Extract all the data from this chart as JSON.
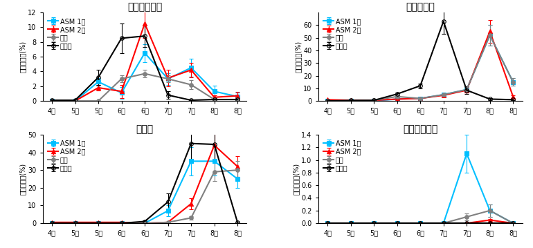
{
  "x_labels": [
    "4하",
    "5중",
    "5하",
    "6중",
    "6하",
    "7중",
    "7하",
    "8중",
    "8하"
  ],
  "charts": {
    "top_left": {
      "title": "점무늬낙엽병",
      "ylim": [
        0,
        12
      ],
      "yticks": [
        0,
        2,
        4,
        6,
        8,
        10,
        12
      ],
      "series": {
        "ASM 1회": {
          "color": "#00BFFF",
          "marker": "s",
          "values": [
            0.0,
            0.0,
            2.6,
            1.1,
            6.5,
            3.0,
            4.5,
            1.3,
            0.6
          ],
          "yerr": [
            0.0,
            0.0,
            0.5,
            0.8,
            1.2,
            0.8,
            1.2,
            0.8,
            0.5
          ]
        },
        "ASM 2회": {
          "color": "#FF0000",
          "marker": "^",
          "values": [
            0.0,
            0.0,
            1.8,
            1.3,
            10.5,
            3.1,
            4.2,
            0.5,
            0.7
          ],
          "yerr": [
            0.0,
            0.0,
            0.4,
            0.9,
            2.0,
            1.1,
            1.0,
            0.3,
            0.5
          ]
        },
        "관행": {
          "color": "#808080",
          "marker": "o",
          "values": [
            0.0,
            0.0,
            0.0,
            3.0,
            3.7,
            3.0,
            2.2,
            0.2,
            0.2
          ],
          "yerr": [
            0.0,
            0.0,
            0.0,
            0.5,
            0.5,
            0.5,
            0.6,
            0.2,
            0.2
          ]
        },
        "무처리": {
          "color": "#000000",
          "marker": "o",
          "values": [
            0.1,
            0.1,
            3.2,
            8.5,
            8.8,
            0.8,
            0.1,
            0.2,
            0.2
          ],
          "yerr": [
            0.05,
            0.05,
            1.0,
            2.0,
            1.5,
            0.5,
            0.05,
            0.2,
            0.5
          ]
        }
      }
    },
    "top_right": {
      "title": "갈색무늬병",
      "ylim": [
        0,
        70
      ],
      "yticks": [
        0,
        10,
        20,
        30,
        40,
        50,
        60
      ],
      "series": {
        "ASM 1회": {
          "color": "#00BFFF",
          "marker": "s",
          "values": [
            0.0,
            0.0,
            0.0,
            1.5,
            2.0,
            5.0,
            9.0,
            52.0,
            15.0
          ],
          "yerr": [
            0.0,
            0.0,
            0.0,
            0.3,
            0.5,
            1.0,
            2.0,
            8.0,
            3.0
          ]
        },
        "ASM 2회": {
          "color": "#FF0000",
          "marker": "^",
          "values": [
            1.0,
            0.5,
            0.5,
            1.5,
            2.0,
            4.5,
            8.5,
            55.0,
            3.5
          ],
          "yerr": [
            0.3,
            0.2,
            0.2,
            0.5,
            0.5,
            1.0,
            2.0,
            9.0,
            1.0
          ]
        },
        "관행": {
          "color": "#808080",
          "marker": "o",
          "values": [
            0.0,
            0.0,
            0.5,
            3.5,
            2.0,
            5.0,
            9.0,
            52.0,
            15.0
          ],
          "yerr": [
            0.0,
            0.0,
            0.2,
            0.8,
            0.5,
            1.0,
            2.0,
            8.0,
            3.0
          ]
        },
        "무처리": {
          "color": "#000000",
          "marker": "o",
          "values": [
            0.0,
            0.5,
            0.5,
            5.5,
            12.0,
            63.0,
            8.5,
            1.5,
            1.0
          ],
          "yerr": [
            0.0,
            0.2,
            0.2,
            1.0,
            2.0,
            10.0,
            3.0,
            0.8,
            0.5
          ]
        }
      }
    },
    "bottom_left": {
      "title": "탄저병",
      "ylim": [
        0,
        50
      ],
      "yticks": [
        0,
        10,
        20,
        30,
        40,
        50
      ],
      "series": {
        "ASM 1회": {
          "color": "#00BFFF",
          "marker": "s",
          "values": [
            0.0,
            0.0,
            0.0,
            0.0,
            0.0,
            7.0,
            35.0,
            35.0,
            25.0
          ],
          "yerr": [
            0.0,
            0.0,
            0.0,
            0.0,
            0.0,
            3.0,
            8.0,
            8.0,
            5.0
          ]
        },
        "ASM 2회": {
          "color": "#FF0000",
          "marker": "^",
          "values": [
            0.5,
            0.5,
            0.5,
            0.5,
            0.0,
            0.5,
            11.0,
            44.0,
            32.0
          ],
          "yerr": [
            0.2,
            0.2,
            0.2,
            0.2,
            0.0,
            0.2,
            3.0,
            8.0,
            6.0
          ]
        },
        "관행": {
          "color": "#808080",
          "marker": "o",
          "values": [
            0.0,
            0.0,
            0.0,
            0.0,
            0.0,
            0.5,
            3.0,
            29.0,
            30.0
          ],
          "yerr": [
            0.0,
            0.0,
            0.0,
            0.0,
            0.0,
            0.3,
            1.0,
            5.0,
            5.0
          ]
        },
        "무처리": {
          "color": "#000000",
          "marker": "o",
          "values": [
            0.0,
            0.0,
            0.0,
            0.0,
            1.0,
            12.0,
            45.0,
            44.5,
            0.5
          ],
          "yerr": [
            0.0,
            0.0,
            0.0,
            0.0,
            0.5,
            5.0,
            10.0,
            10.0,
            0.3
          ]
        }
      }
    },
    "bottom_right": {
      "title": "겹무늬썩음병",
      "ylim": [
        0,
        1.4
      ],
      "yticks": [
        0.0,
        0.2,
        0.4,
        0.6,
        0.8,
        1.0,
        1.2,
        1.4
      ],
      "series": {
        "ASM 1회": {
          "color": "#00BFFF",
          "marker": "s",
          "values": [
            0.0,
            0.0,
            0.0,
            0.0,
            0.0,
            0.0,
            1.1,
            0.2,
            0.0
          ],
          "yerr": [
            0.0,
            0.0,
            0.0,
            0.0,
            0.0,
            0.0,
            0.3,
            0.1,
            0.0
          ]
        },
        "ASM 2회": {
          "color": "#FF0000",
          "marker": "^",
          "values": [
            0.0,
            0.0,
            0.0,
            0.0,
            0.0,
            0.0,
            0.0,
            0.05,
            0.0
          ],
          "yerr": [
            0.0,
            0.0,
            0.0,
            0.0,
            0.0,
            0.0,
            0.0,
            0.02,
            0.0
          ]
        },
        "관행": {
          "color": "#808080",
          "marker": "o",
          "values": [
            0.0,
            0.0,
            0.0,
            0.0,
            0.0,
            0.0,
            0.1,
            0.2,
            0.0
          ],
          "yerr": [
            0.0,
            0.0,
            0.0,
            0.0,
            0.0,
            0.0,
            0.05,
            0.1,
            0.0
          ]
        },
        "무처리": {
          "color": "#000000",
          "marker": "o",
          "values": [
            0.0,
            0.0,
            0.0,
            0.0,
            0.0,
            0.0,
            0.0,
            0.0,
            0.0
          ],
          "yerr": [
            0.0,
            0.0,
            0.0,
            0.0,
            0.0,
            0.0,
            0.0,
            0.0,
            0.0
          ]
        }
      }
    }
  },
  "ylabel": "피해엽비율(%)",
  "legend_labels": [
    "ASM 1회",
    "ASM 2회",
    "관행",
    "무처리"
  ],
  "marker_sizes": {
    "s": 5,
    "^": 6,
    "o": 5
  },
  "linewidth": 1.5,
  "fontsize_title": 10,
  "fontsize_tick": 7,
  "fontsize_legend": 7,
  "fontsize_ylabel": 7
}
